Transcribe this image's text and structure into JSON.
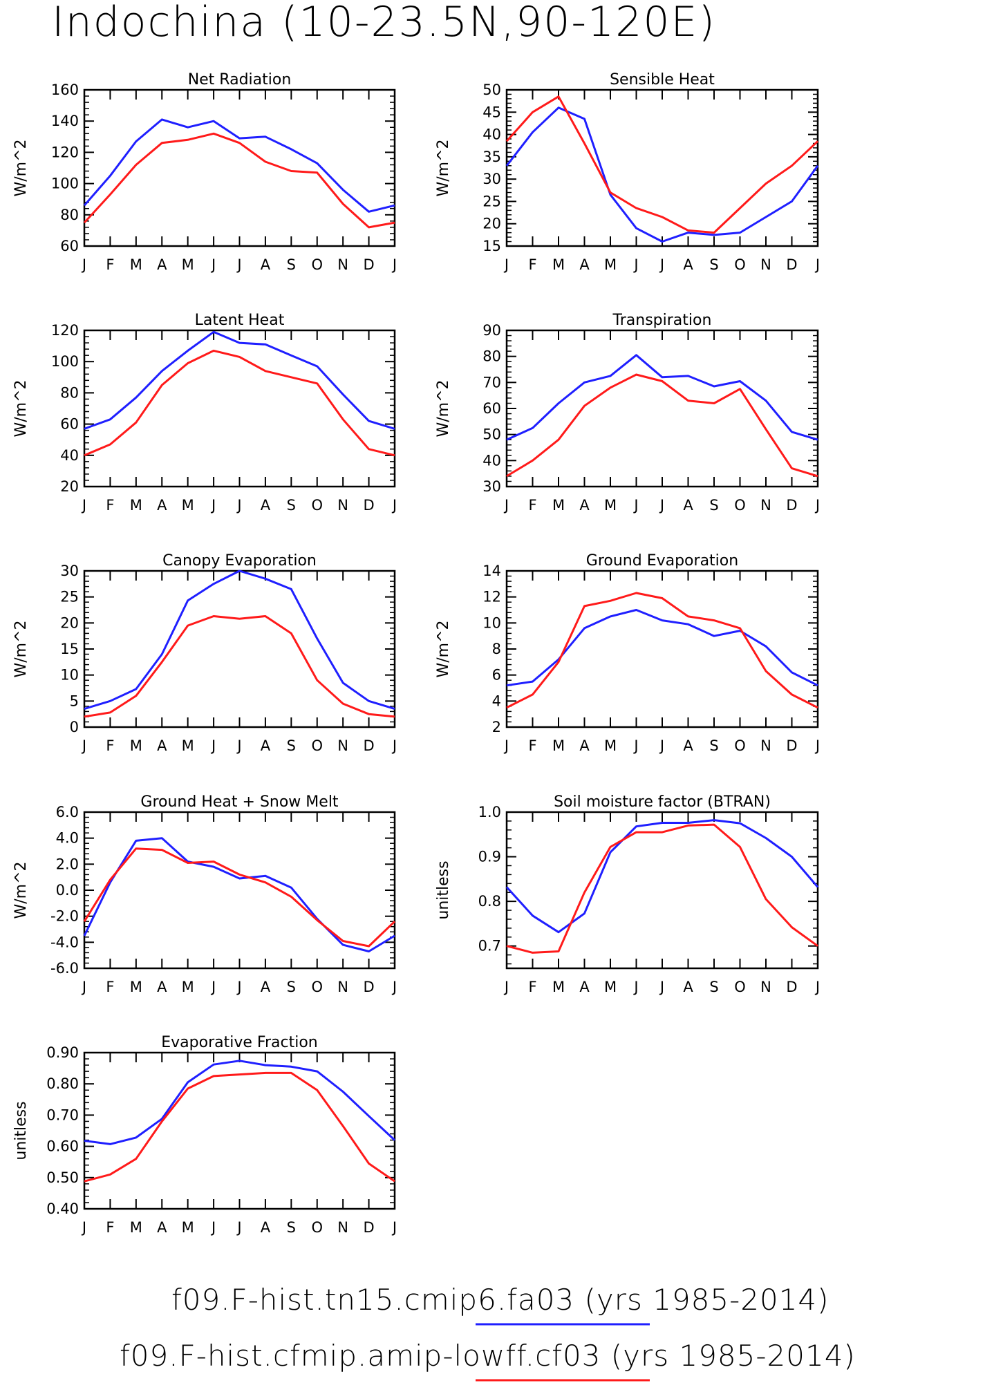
{
  "page_title": "Indochina (10-23.5N,90-120E)",
  "legend": [
    {
      "label": "f09.F-hist.tn15.cmip6.fa03 (yrs 1985-2014)",
      "color": "#1f1fff"
    },
    {
      "label": "f09.F-hist.cfmip.amip-lowff.cf03 (yrs 1985-2014)",
      "color": "#ff1a1a"
    }
  ],
  "colors": {
    "series_1": "#1f1fff",
    "series_2": "#ff1a1a",
    "axis": "#000000"
  },
  "chart_data": [
    {
      "type": "line",
      "title": "Net Radiation",
      "ylabel": "W/m^2",
      "ylim": [
        60,
        160
      ],
      "yticks": [
        "60",
        "80",
        "100",
        "120",
        "140",
        "160"
      ],
      "categories": [
        "J",
        "F",
        "M",
        "A",
        "M",
        "J",
        "J",
        "A",
        "S",
        "O",
        "N",
        "D",
        "J"
      ],
      "series": [
        {
          "values": [
            86,
            105,
            127,
            141,
            136,
            140,
            129,
            130,
            122,
            113,
            96,
            82,
            86
          ]
        },
        {
          "values": [
            75,
            93,
            112,
            126,
            128,
            132,
            126,
            114,
            108,
            107,
            87,
            72,
            75
          ]
        }
      ]
    },
    {
      "type": "line",
      "title": "Sensible Heat",
      "ylabel": "W/m^2",
      "ylim": [
        15,
        50
      ],
      "yticks": [
        "15",
        "20",
        "25",
        "30",
        "35",
        "40",
        "45",
        "50"
      ],
      "categories": [
        "J",
        "F",
        "M",
        "A",
        "M",
        "J",
        "J",
        "A",
        "S",
        "O",
        "N",
        "D",
        "J"
      ],
      "series": [
        {
          "values": [
            33,
            40.5,
            46,
            43.5,
            26.5,
            19,
            16,
            18,
            17.5,
            18,
            21.5,
            25,
            33
          ]
        },
        {
          "values": [
            38.5,
            45,
            48.5,
            38,
            27,
            23.5,
            21.5,
            18.5,
            18,
            23.5,
            29,
            33,
            38.5
          ]
        }
      ]
    },
    {
      "type": "line",
      "title": "Latent Heat",
      "ylabel": "W/m^2",
      "ylim": [
        20,
        120
      ],
      "yticks": [
        "20",
        "40",
        "60",
        "80",
        "100",
        "120"
      ],
      "categories": [
        "J",
        "F",
        "M",
        "A",
        "M",
        "J",
        "J",
        "A",
        "S",
        "O",
        "N",
        "D",
        "J"
      ],
      "series": [
        {
          "values": [
            57,
            63,
            77,
            94,
            107,
            119,
            112,
            111,
            104,
            97,
            79,
            62,
            57
          ]
        },
        {
          "values": [
            40,
            47,
            61,
            85,
            99,
            107,
            103,
            94,
            90,
            86,
            63,
            44,
            40
          ]
        }
      ]
    },
    {
      "type": "line",
      "title": "Transpiration",
      "ylabel": "W/m^2",
      "ylim": [
        30,
        90
      ],
      "yticks": [
        "30",
        "40",
        "50",
        "60",
        "70",
        "80",
        "90"
      ],
      "categories": [
        "J",
        "F",
        "M",
        "A",
        "M",
        "J",
        "J",
        "A",
        "S",
        "O",
        "N",
        "D",
        "J"
      ],
      "series": [
        {
          "values": [
            48,
            52.5,
            62,
            70,
            72.5,
            80.5,
            72,
            72.5,
            68.5,
            70.5,
            63,
            51,
            48
          ]
        },
        {
          "values": [
            34,
            40,
            48,
            61,
            68,
            73,
            70.5,
            63,
            62,
            67.5,
            52,
            37,
            34
          ]
        }
      ]
    },
    {
      "type": "line",
      "title": "Canopy Evaporation",
      "ylabel": "W/m^2",
      "ylim": [
        0,
        30
      ],
      "yticks": [
        "0",
        "5",
        "10",
        "15",
        "20",
        "25",
        "30"
      ],
      "categories": [
        "J",
        "F",
        "M",
        "A",
        "M",
        "J",
        "J",
        "A",
        "S",
        "O",
        "N",
        "D",
        "J"
      ],
      "series": [
        {
          "values": [
            3.5,
            5,
            7.3,
            14,
            24.3,
            27.5,
            30,
            28.5,
            26.5,
            17,
            8.5,
            5,
            3.5
          ]
        },
        {
          "values": [
            2,
            2.8,
            6,
            12.5,
            19.5,
            21.3,
            20.8,
            21.3,
            18,
            9,
            4.5,
            2.5,
            2
          ]
        }
      ]
    },
    {
      "type": "line",
      "title": "Ground Evaporation",
      "ylabel": "W/m^2",
      "ylim": [
        2,
        14
      ],
      "yticks": [
        "2",
        "4",
        "6",
        "8",
        "10",
        "12",
        "14"
      ],
      "categories": [
        "J",
        "F",
        "M",
        "A",
        "M",
        "J",
        "J",
        "A",
        "S",
        "O",
        "N",
        "D",
        "J"
      ],
      "series": [
        {
          "values": [
            5.2,
            5.5,
            7.2,
            9.6,
            10.5,
            11,
            10.2,
            9.9,
            9,
            9.4,
            8.2,
            6.2,
            5.2
          ]
        },
        {
          "values": [
            3.5,
            4.5,
            7,
            11.3,
            11.7,
            12.3,
            11.9,
            10.5,
            10.2,
            9.6,
            6.3,
            4.5,
            3.5
          ]
        }
      ]
    },
    {
      "type": "line",
      "title": "Ground Heat + Snow Melt",
      "ylabel": "W/m^2",
      "ylim": [
        -6,
        6
      ],
      "yticks": [
        "-6.0",
        "-4.0",
        "-2.0",
        "0.0",
        "2.0",
        "4.0",
        "6.0"
      ],
      "categories": [
        "J",
        "F",
        "M",
        "A",
        "M",
        "J",
        "J",
        "A",
        "S",
        "O",
        "N",
        "D",
        "J"
      ],
      "series": [
        {
          "values": [
            -3.5,
            0.6,
            3.8,
            4.0,
            2.2,
            1.8,
            0.9,
            1.1,
            0.2,
            -2.2,
            -4.2,
            -4.7,
            -3.5
          ]
        },
        {
          "values": [
            -2.4,
            0.8,
            3.2,
            3.1,
            2.1,
            2.2,
            1.2,
            0.6,
            -0.5,
            -2.3,
            -3.9,
            -4.3,
            -2.4
          ]
        }
      ]
    },
    {
      "type": "line",
      "title": "Soil moisture factor (BTRAN)",
      "ylabel": "unitless",
      "ylim": [
        0.65,
        1.0
      ],
      "yticks": [
        "0.7",
        "0.8",
        "0.9",
        "1.0"
      ],
      "yticks_values": [
        0.7,
        0.8,
        0.9,
        1.0
      ],
      "categories": [
        "J",
        "F",
        "M",
        "A",
        "M",
        "J",
        "J",
        "A",
        "S",
        "O",
        "N",
        "D",
        "J"
      ],
      "series": [
        {
          "values": [
            0.832,
            0.768,
            0.731,
            0.773,
            0.91,
            0.968,
            0.976,
            0.976,
            0.982,
            0.975,
            0.942,
            0.9,
            0.832
          ]
        },
        {
          "values": [
            0.7,
            0.685,
            0.688,
            0.82,
            0.922,
            0.955,
            0.955,
            0.97,
            0.972,
            0.922,
            0.805,
            0.742,
            0.7
          ]
        }
      ]
    },
    {
      "type": "line",
      "title": "Evaporative Fraction",
      "ylabel": "unitless",
      "ylim": [
        0.4,
        0.9
      ],
      "yticks": [
        "0.40",
        "0.50",
        "0.60",
        "0.70",
        "0.80",
        "0.90"
      ],
      "categories": [
        "J",
        "F",
        "M",
        "A",
        "M",
        "J",
        "J",
        "A",
        "S",
        "O",
        "N",
        "D",
        "J"
      ],
      "series": [
        {
          "values": [
            0.618,
            0.607,
            0.628,
            0.688,
            0.805,
            0.862,
            0.874,
            0.86,
            0.855,
            0.84,
            0.775,
            0.697,
            0.62
          ]
        },
        {
          "values": [
            0.488,
            0.51,
            0.56,
            0.68,
            0.785,
            0.825,
            0.83,
            0.835,
            0.835,
            0.78,
            0.665,
            0.545,
            0.488
          ]
        }
      ]
    }
  ]
}
